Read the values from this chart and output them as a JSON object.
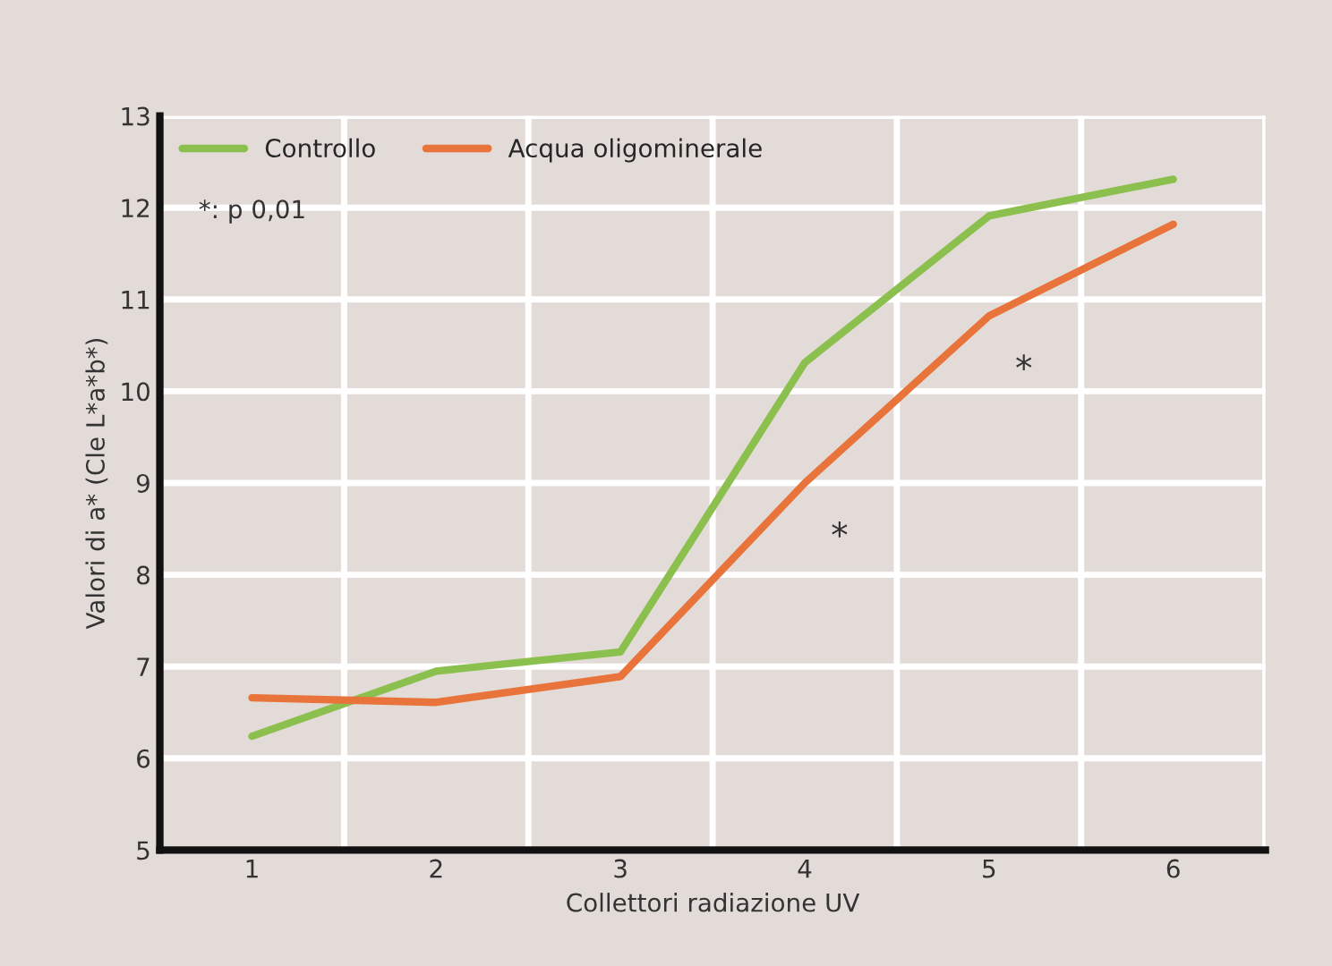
{
  "chart_data": {
    "type": "line",
    "xlabel": "Collettori radiazione UV",
    "ylabel": "Valori di a* (Cle L*a*b*)",
    "x": [
      1,
      2,
      3,
      4,
      5,
      6
    ],
    "series": [
      {
        "name": "Controllo",
        "color": "#8cc04e",
        "values": [
          6.24,
          6.95,
          7.16,
          10.31,
          11.91,
          12.31
        ]
      },
      {
        "name": "Acqua oligominerale",
        "color": "#e8743b",
        "values": [
          6.66,
          6.61,
          6.89,
          9.0,
          10.82,
          11.82
        ]
      }
    ],
    "xlim": [
      0.5,
      6.5
    ],
    "xticks": [
      1,
      2,
      3,
      4,
      5,
      6,
      {
        "value": 1.5,
        "label": null
      },
      {
        "value": 2.5,
        "label": null
      },
      {
        "value": 3.5,
        "label": null
      },
      {
        "value": 4.5,
        "label": null
      },
      {
        "value": 5.5,
        "label": null
      },
      {
        "value": 6.5,
        "label": null
      }
    ],
    "ylim": [
      5,
      13
    ],
    "yticks": [
      5,
      6,
      7,
      8,
      9,
      10,
      11,
      12,
      13
    ],
    "grid": true,
    "legend": "top left",
    "marker": "none",
    "line_style": "solid",
    "annotations": [
      "*: p 0,01",
      "*",
      "*"
    ]
  }
}
